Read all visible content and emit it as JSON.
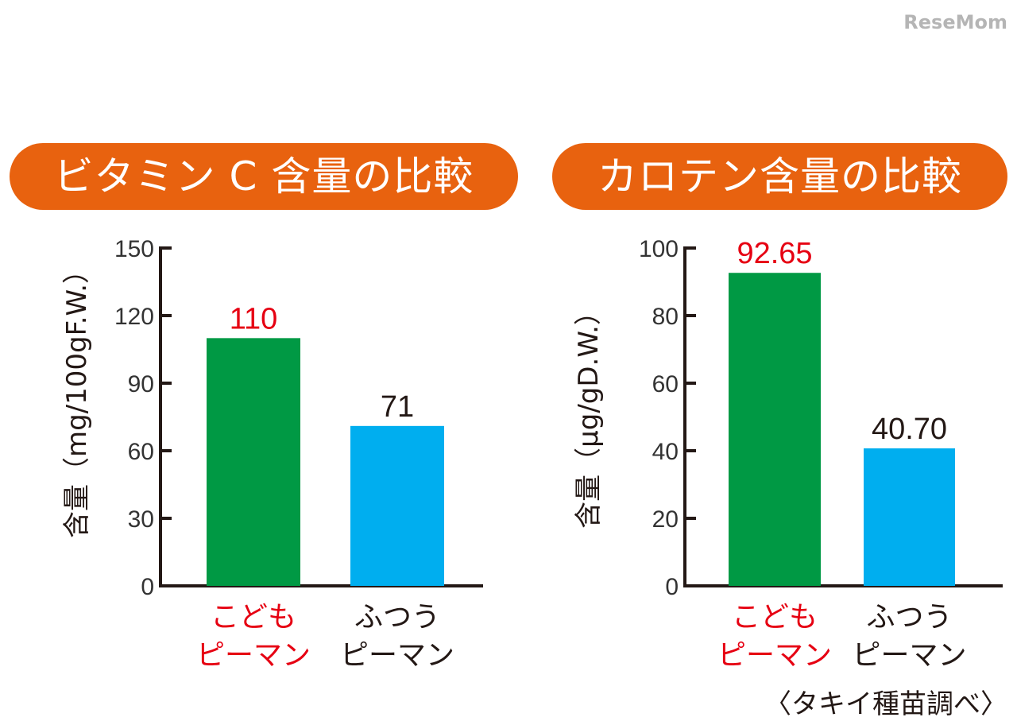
{
  "colors": {
    "title_bg": "#e8620f",
    "green": "#009944",
    "blue": "#00aeef",
    "highlight_text": "#e60012",
    "text": "#231815"
  },
  "chart_data": [
    {
      "type": "bar",
      "title": "ビタミン C 含量の比較",
      "ylabel": "含量（mg/100gF.W.）",
      "ylim": [
        0,
        150
      ],
      "yticks": [
        0,
        30,
        60,
        90,
        120,
        150
      ],
      "categories": [
        "こどもピーマン",
        "ふつうピーマン"
      ],
      "category_lines": [
        [
          "こども",
          "ピーマン"
        ],
        [
          "ふつう",
          "ピーマン"
        ]
      ],
      "values": [
        110,
        71
      ],
      "value_labels": [
        "110",
        "71"
      ],
      "grid": false
    },
    {
      "type": "bar",
      "title": "カロテン含量の比較",
      "ylabel": "含量（μg/gD.W.）",
      "ylim": [
        0,
        100
      ],
      "yticks": [
        0,
        20,
        40,
        60,
        80,
        100
      ],
      "categories": [
        "こどもピーマン",
        "ふつうピーマン"
      ],
      "category_lines": [
        [
          "こども",
          "ピーマン"
        ],
        [
          "ふつう",
          "ピーマン"
        ]
      ],
      "values": [
        92.65,
        40.7
      ],
      "value_labels": [
        "92.65",
        "40.70"
      ],
      "grid": false
    }
  ],
  "source": "〈タキイ種苗調べ〉",
  "watermark": "ReseMom"
}
